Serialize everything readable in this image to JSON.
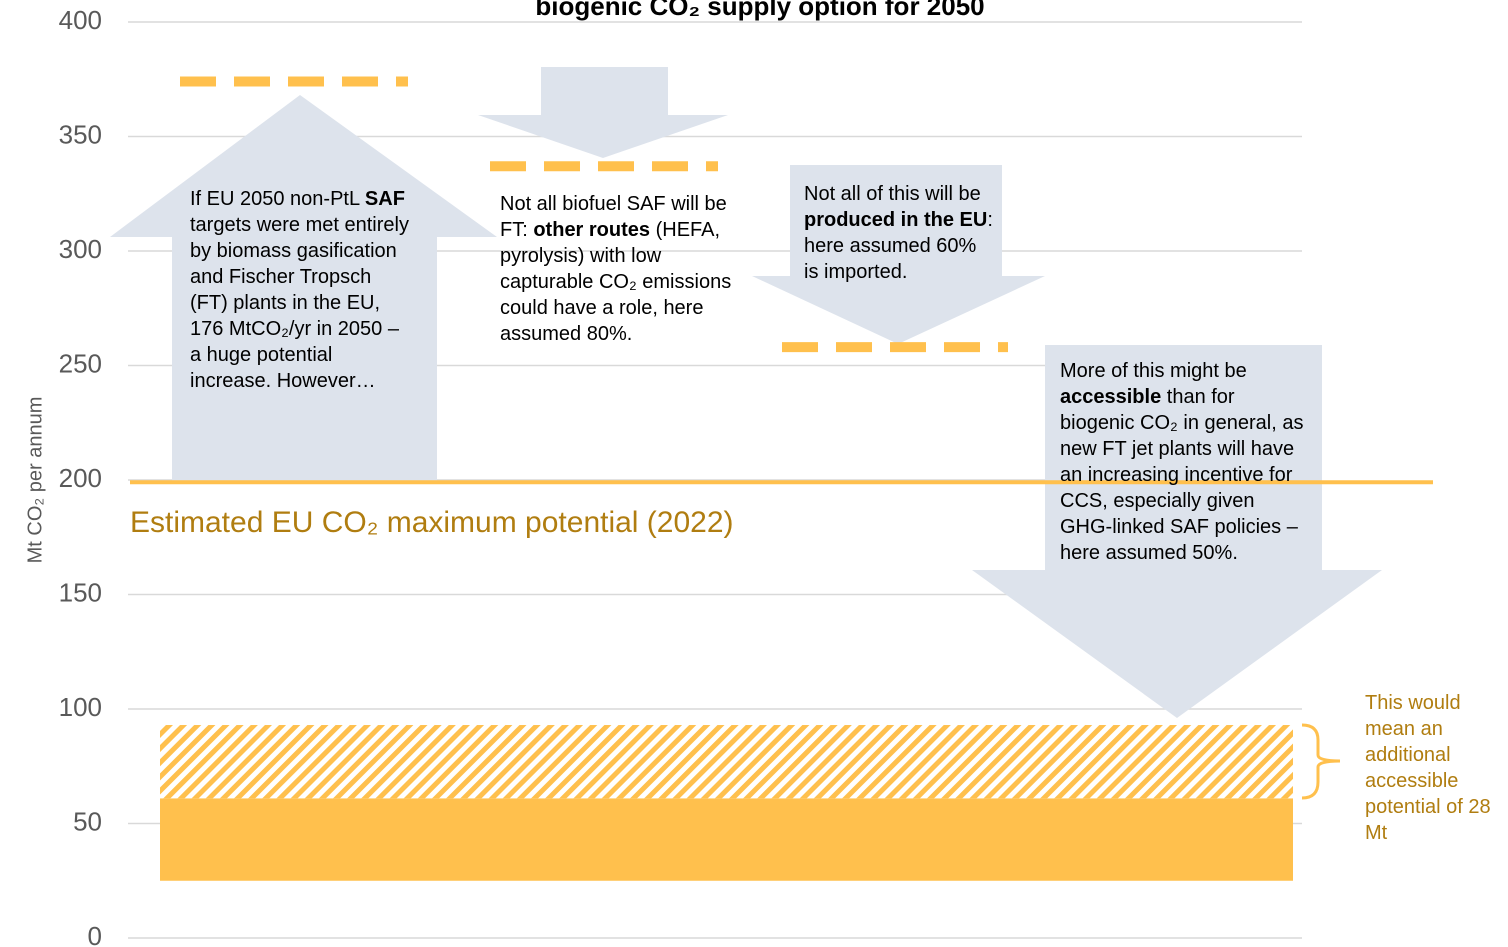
{
  "chart_data": {
    "type": "annotated",
    "title": "biogenic CO₂ supply option for 2050",
    "y_label": "Mt CO₂ per annum",
    "ylim": [
      0,
      400
    ],
    "yticks": [
      0,
      50,
      100,
      150,
      200,
      250,
      300,
      350,
      400
    ],
    "grid": true,
    "color": "#ffc04d",
    "levels": [
      374,
      337,
      258
    ],
    "max_line": {
      "value": 199,
      "label": "Estimated EU CO₂ maximum potential (2022)"
    },
    "bar": {
      "floor": 25,
      "segments": [
        {
          "pattern": "solid",
          "value": 36
        },
        {
          "pattern": "hatched",
          "value": 32
        }
      ]
    },
    "bracket_label": "This would mean an additional accessible potential of 28 Mt",
    "annotations": [
      [
        {
          "text": "If EU 2050 non-PtL "
        },
        {
          "text": "SAF",
          "bold": true
        },
        {
          "text": " targets were met entirely by biomass gasification and Fischer Tropsch (FT) plants in the EU, 176 MtCO₂/yr in 2050 – a huge potential increase. However…"
        }
      ],
      [
        {
          "text": "Not all biofuel SAF will be FT: "
        },
        {
          "text": "other routes",
          "bold": true
        },
        {
          "text": " (HEFA, pyrolysis) with low capturable CO₂ emissions could have a role, here assumed 80%."
        }
      ],
      [
        {
          "text": "Not all of this will be "
        },
        {
          "text": "produced in the EU",
          "bold": true
        },
        {
          "text": ": here assumed 60% is imported."
        }
      ],
      [
        {
          "text": "More of this might be "
        },
        {
          "text": "accessible",
          "bold": true
        },
        {
          "text": " than for biogenic CO₂ in general, as new FT jet plants will have an increasing incentive for CCS, especially given GHG-linked SAF policies – here assumed 50%."
        }
      ]
    ]
  }
}
